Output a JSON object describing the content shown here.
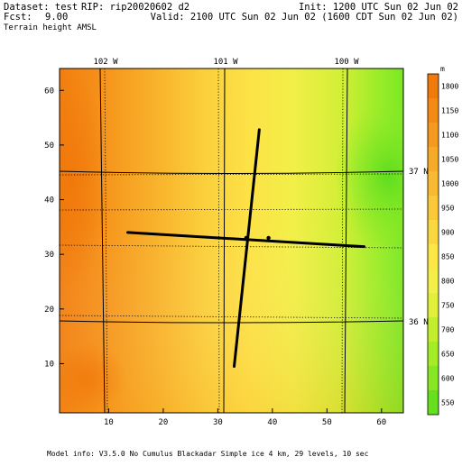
{
  "header": {
    "dataset": "Dataset: test",
    "rip": "RIP: rip20020602 d2",
    "init": "Init: 1200 UTC Sun 02 Jun 02",
    "fcst_label": "Fcst:",
    "fcst_value": "9.00",
    "valid": "Valid: 2100 UTC Sun 02 Jun 02 (1600 CDT Sun 02 Jun 02)",
    "field": "Terrain height AMSL"
  },
  "map": {
    "longitude_labels": [
      "102 W",
      "101 W",
      "100 W"
    ],
    "latitude_labels": [
      "37 N",
      "36 N"
    ],
    "x_ticks": [
      "10",
      "20",
      "30",
      "40",
      "50",
      "60"
    ],
    "y_ticks": [
      "10",
      "20",
      "30",
      "40",
      "50",
      "60"
    ]
  },
  "cross_sections": [
    {
      "x": [
        13.5,
        56.8
      ],
      "y": [
        34.0,
        31.4
      ]
    },
    {
      "x": [
        33.0,
        37.6
      ],
      "y": [
        9.5,
        52.8
      ]
    }
  ],
  "markers": [
    {
      "x": 35.2,
      "y": 33.0
    },
    {
      "x": 39.3,
      "y": 33.0
    }
  ],
  "colorbar": {
    "unit": "m",
    "levels": [
      "1800",
      "1150",
      "1100",
      "1050",
      "1000",
      "950",
      "900",
      "850",
      "800",
      "750",
      "700",
      "650",
      "600",
      "550"
    ],
    "colors": [
      "#f07a0a",
      "#f38a14",
      "#f59a1e",
      "#f7a928",
      "#f9b932",
      "#fbc83a",
      "#fcd840",
      "#fde646",
      "#f4ef48",
      "#e0ef3a",
      "#c2ee2e",
      "#a4ec26",
      "#86e722",
      "#66e01e"
    ]
  },
  "footer": {
    "model_info": "Model info: V3.5.0 No Cumulus Blackadar Simple ice 4 km, 29 levels, 10 sec"
  }
}
